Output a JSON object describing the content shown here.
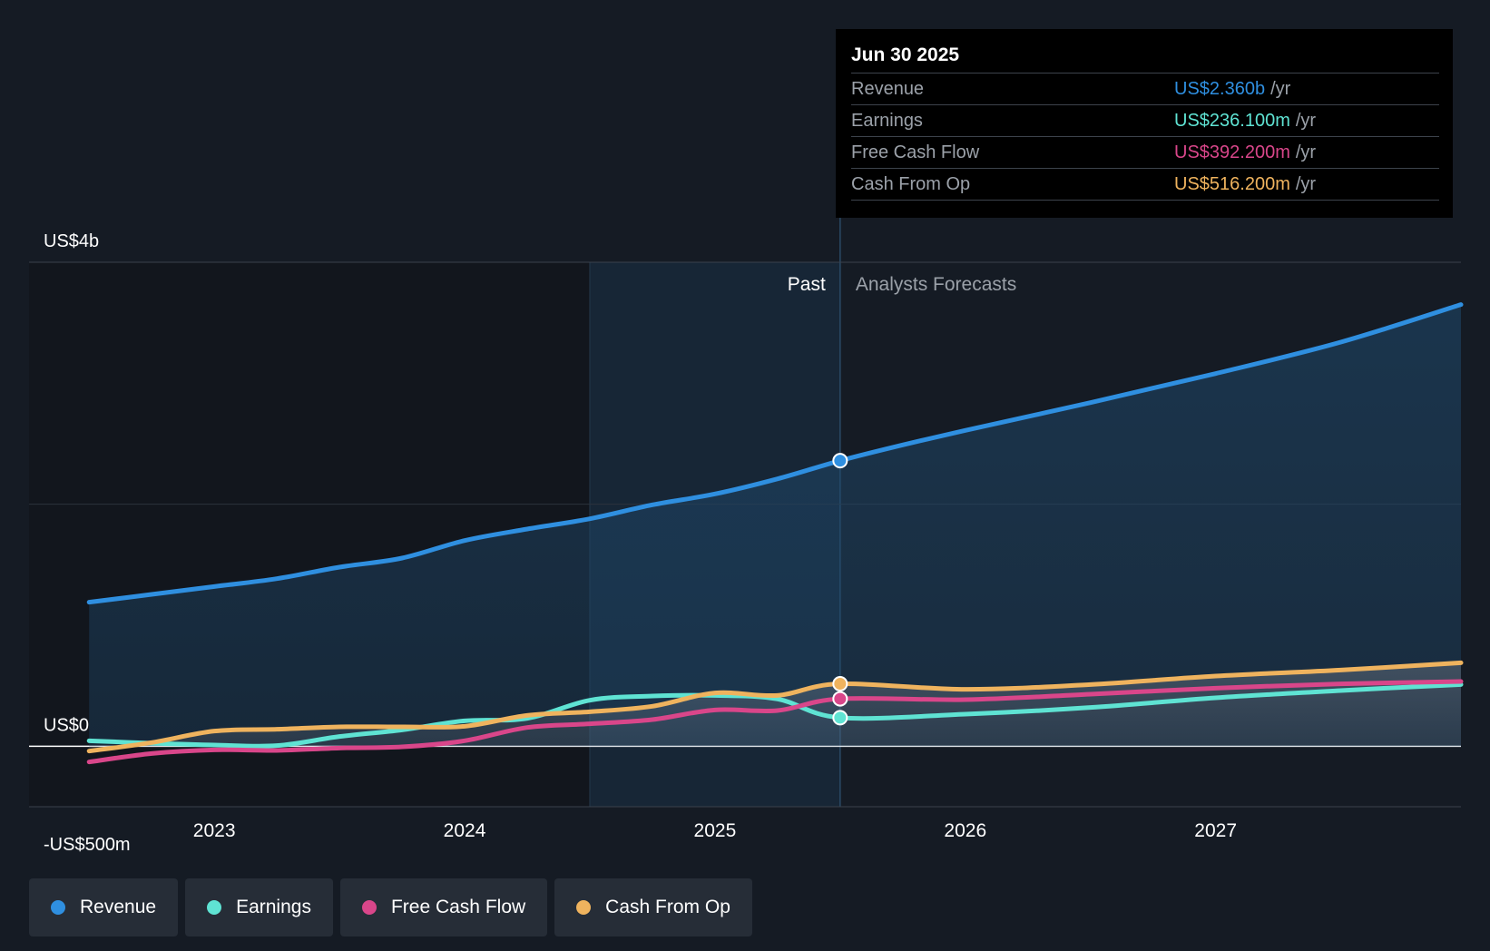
{
  "chart_data": {
    "type": "line",
    "y_ticks": [
      {
        "value": 4000,
        "label": "US$4b"
      },
      {
        "value": 0,
        "label": "US$0"
      },
      {
        "value": -500,
        "label": "-US$500m"
      }
    ],
    "x_ticks": [
      {
        "value": 2023.0,
        "label": "2023"
      },
      {
        "value": 2024.0,
        "label": "2024"
      },
      {
        "value": 2025.0,
        "label": "2025"
      },
      {
        "value": 2026.0,
        "label": "2026"
      },
      {
        "value": 2027.0,
        "label": "2027"
      }
    ],
    "xlim": [
      2022.26,
      2027.98
    ],
    "ylim": [
      -500,
      4000
    ],
    "past_label": "Past",
    "forecast_label": "Analysts Forecasts",
    "past_end": 2025.5,
    "highlight_start": 2024.5,
    "series": [
      {
        "name": "Revenue",
        "color": "#2f8fe0",
        "marker_x": 2025.5,
        "points": [
          [
            2022.5,
            1190
          ],
          [
            2022.75,
            1255
          ],
          [
            2023.0,
            1320
          ],
          [
            2023.25,
            1385
          ],
          [
            2023.5,
            1480
          ],
          [
            2023.75,
            1555
          ],
          [
            2024.0,
            1700
          ],
          [
            2024.25,
            1795
          ],
          [
            2024.5,
            1880
          ],
          [
            2024.75,
            1995
          ],
          [
            2025.0,
            2085
          ],
          [
            2025.25,
            2210
          ],
          [
            2025.5,
            2360
          ],
          [
            2025.75,
            2490
          ],
          [
            2026.0,
            2610
          ],
          [
            2026.5,
            2840
          ],
          [
            2027.0,
            3080
          ],
          [
            2027.5,
            3340
          ],
          [
            2027.98,
            3650
          ]
        ]
      },
      {
        "name": "Earnings",
        "color": "#5fe3d3",
        "marker_x": 2025.5,
        "points": [
          [
            2022.5,
            45
          ],
          [
            2022.75,
            25
          ],
          [
            2023.0,
            10
          ],
          [
            2023.25,
            5
          ],
          [
            2023.5,
            80
          ],
          [
            2023.75,
            135
          ],
          [
            2024.0,
            210
          ],
          [
            2024.25,
            230
          ],
          [
            2024.5,
            380
          ],
          [
            2024.75,
            415
          ],
          [
            2025.0,
            420
          ],
          [
            2025.25,
            390
          ],
          [
            2025.5,
            236
          ],
          [
            2026.0,
            265
          ],
          [
            2026.5,
            320
          ],
          [
            2027.0,
            400
          ],
          [
            2027.5,
            460
          ],
          [
            2027.98,
            510
          ]
        ]
      },
      {
        "name": "Free Cash Flow",
        "color": "#d9468a",
        "marker_x": 2025.5,
        "points": [
          [
            2022.5,
            -130
          ],
          [
            2022.75,
            -60
          ],
          [
            2023.0,
            -30
          ],
          [
            2023.25,
            -35
          ],
          [
            2023.5,
            -15
          ],
          [
            2023.75,
            -5
          ],
          [
            2024.0,
            45
          ],
          [
            2024.25,
            155
          ],
          [
            2024.5,
            185
          ],
          [
            2024.75,
            220
          ],
          [
            2025.0,
            300
          ],
          [
            2025.25,
            295
          ],
          [
            2025.5,
            392
          ],
          [
            2026.0,
            385
          ],
          [
            2026.5,
            430
          ],
          [
            2027.0,
            480
          ],
          [
            2027.5,
            515
          ],
          [
            2027.98,
            535
          ]
        ]
      },
      {
        "name": "Cash From Op",
        "color": "#efb35e",
        "marker_x": 2025.5,
        "points": [
          [
            2022.5,
            -40
          ],
          [
            2022.75,
            30
          ],
          [
            2023.0,
            125
          ],
          [
            2023.25,
            140
          ],
          [
            2023.5,
            160
          ],
          [
            2023.75,
            160
          ],
          [
            2024.0,
            165
          ],
          [
            2024.25,
            255
          ],
          [
            2024.5,
            285
          ],
          [
            2024.75,
            330
          ],
          [
            2025.0,
            440
          ],
          [
            2025.25,
            420
          ],
          [
            2025.5,
            516
          ],
          [
            2026.0,
            470
          ],
          [
            2026.5,
            510
          ],
          [
            2027.0,
            580
          ],
          [
            2027.5,
            630
          ],
          [
            2027.98,
            690
          ]
        ]
      }
    ]
  },
  "tooltip": {
    "date": "Jun 30 2025",
    "rows": [
      {
        "label": "Revenue",
        "value": "US$2.360b",
        "unit": "/yr",
        "color": "#2f8fe0"
      },
      {
        "label": "Earnings",
        "value": "US$236.100m",
        "unit": "/yr",
        "color": "#5fe3d3"
      },
      {
        "label": "Free Cash Flow",
        "value": "US$392.200m",
        "unit": "/yr",
        "color": "#d9468a"
      },
      {
        "label": "Cash From Op",
        "value": "US$516.200m",
        "unit": "/yr",
        "color": "#efb35e"
      }
    ]
  },
  "legend": [
    {
      "label": "Revenue",
      "color": "#2f8fe0"
    },
    {
      "label": "Earnings",
      "color": "#5fe3d3"
    },
    {
      "label": "Free Cash Flow",
      "color": "#d9468a"
    },
    {
      "label": "Cash From Op",
      "color": "#efb35e"
    }
  ]
}
